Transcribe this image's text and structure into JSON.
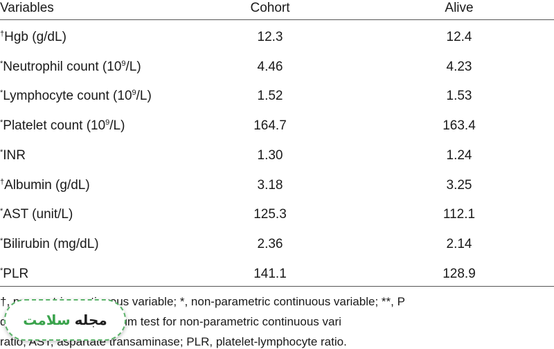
{
  "table": {
    "headers": [
      "Variables",
      "Cohort",
      "Alive"
    ],
    "rows": [
      {
        "pre": "†",
        "label": "Hgb (g/dL)",
        "sup": "",
        "post": "",
        "cohort": "12.3",
        "alive": "12.4"
      },
      {
        "pre": "*",
        "label": "Neutrophil count (10",
        "sup": "9",
        "post": "/L)",
        "cohort": "4.46",
        "alive": "4.23"
      },
      {
        "pre": "*",
        "label": "Lymphocyte count (10",
        "sup": "9",
        "post": "/L)",
        "cohort": "1.52",
        "alive": "1.53"
      },
      {
        "pre": "*",
        "label": "Platelet count (10",
        "sup": "9",
        "post": "/L)",
        "cohort": "164.7",
        "alive": "163.4"
      },
      {
        "pre": "*",
        "label": "INR",
        "sup": "",
        "post": "",
        "cohort": "1.30",
        "alive": "1.24"
      },
      {
        "pre": "†",
        "label": "Albumin (g/dL)",
        "sup": "",
        "post": "",
        "cohort": "3.18",
        "alive": "3.25"
      },
      {
        "pre": "*",
        "label": "AST (unit/L)",
        "sup": "",
        "post": "",
        "cohort": "125.3",
        "alive": "112.1"
      },
      {
        "pre": "*",
        "label": "Bilirubin (mg/dL)",
        "sup": "",
        "post": "",
        "cohort": "2.36",
        "alive": "2.14"
      },
      {
        "pre": "*",
        "label": "PLR",
        "sup": "",
        "post": "",
        "cohort": "141.1",
        "alive": "128.9"
      }
    ]
  },
  "footnotes": [
    "†, parametric continuous variable; *, non-parametric continuous variable; **, P",
    "d                 es, Wilcoxon’s rank-sum test for non-parametric continuous vari",
    "ratio; AST, aspartate transaminase; PLR, platelet-lymphocyte ratio."
  ],
  "watermark": {
    "word1": "مجله",
    "word2": "سلامت"
  }
}
